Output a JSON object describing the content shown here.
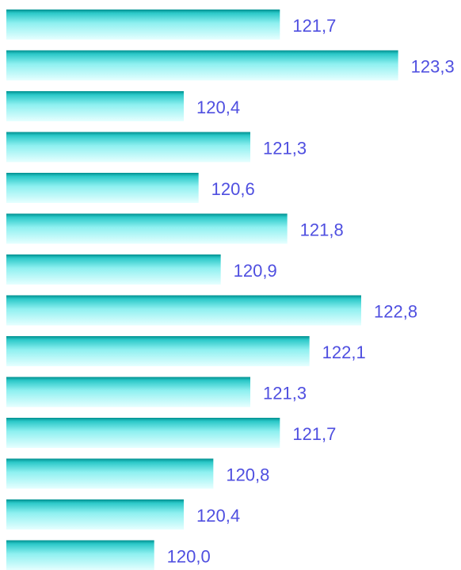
{
  "chart_data": {
    "type": "hbar",
    "values": [
      121.7,
      123.3,
      120.4,
      121.3,
      120.6,
      121.8,
      120.9,
      122.8,
      122.1,
      121.3,
      121.7,
      120.8,
      120.4,
      120.0
    ],
    "value_labels": [
      "121,7",
      "123,3",
      "120,4",
      "121,3",
      "120,6",
      "121,8",
      "120,9",
      "122,8",
      "122,1",
      "121,3",
      "121,7",
      "120,8",
      "120,4",
      "120,0"
    ],
    "xlim": [
      118,
      124.15
    ]
  }
}
